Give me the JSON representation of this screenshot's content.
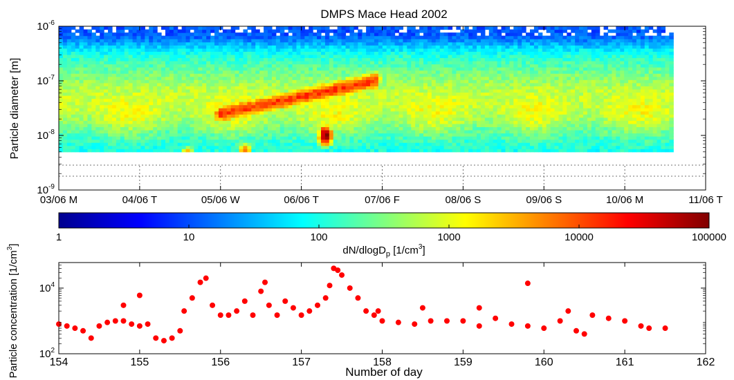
{
  "chart_data": [
    {
      "type": "heatmap",
      "title": "DMPS Mace Head 2002",
      "ylabel": "Particle diameter [m]",
      "xlabel": "",
      "x_ticks": [
        "03/06 M",
        "04/06 T",
        "05/06 W",
        "06/06 T",
        "07/06 F",
        "08/06 S",
        "09/06 S",
        "10/06 M",
        "11/06 T"
      ],
      "y_ticks": [
        {
          "base": "10",
          "exp": "-9",
          "value": 1e-09
        },
        {
          "base": "10",
          "exp": "-8",
          "value": 1e-08
        },
        {
          "base": "10",
          "exp": "-7",
          "value": 1e-07
        },
        {
          "base": "10",
          "exp": "-6",
          "value": 1e-06
        }
      ],
      "y_scale": "log",
      "ylim": [
        1e-09,
        1e-06
      ],
      "data_x_end_fraction": 0.95,
      "colorbar": {
        "label_main": "dN/dlogD",
        "label_sub": "p",
        "label_unit": " [1/cm",
        "label_unit_exp": "3",
        "label_unit_close": "]",
        "ticks": [
          "1",
          "10",
          "100",
          "1000",
          "10000",
          "100000"
        ],
        "scale": "log",
        "range": [
          1,
          100000
        ],
        "colormap": "jet"
      },
      "features": [
        {
          "event": "nucleation",
          "day": 155.6,
          "diameter_m": 4e-09,
          "level": "10000"
        },
        {
          "event": "nucleation",
          "day": 156.3,
          "diameter_m": 5e-09,
          "level": "10000"
        },
        {
          "event": "nucleation",
          "day": 157.3,
          "diameter_m": 1e-08,
          "level": "100000"
        },
        {
          "event": "growth_mode",
          "day_start": 156.0,
          "day_end": 157.9,
          "diameter_m": 5e-08,
          "level": "10000"
        }
      ]
    },
    {
      "type": "scatter",
      "title": "",
      "xlabel": "Number of day",
      "ylabel": "Particle concentration [1/cm",
      "ylabel_exp": "3",
      "ylabel_close": "]",
      "x_ticks": [
        "154",
        "155",
        "156",
        "157",
        "158",
        "159",
        "160",
        "161",
        "162"
      ],
      "xlim": [
        154,
        162
      ],
      "y_ticks": [
        {
          "base": "10",
          "exp": "2",
          "value": 100
        },
        {
          "base": "10",
          "exp": "4",
          "value": 10000
        }
      ],
      "y_scale": "log",
      "ylim": [
        100,
        60000
      ],
      "marker_color": "#ff0000",
      "series": [
        {
          "x": [
            154.0,
            154.1,
            154.2,
            154.3,
            154.4,
            154.5,
            154.6,
            154.7,
            154.8,
            154.9,
            155.0,
            155.1,
            155.2,
            155.3,
            155.4,
            155.5,
            155.55,
            155.65,
            155.75,
            155.82,
            155.9,
            156.0,
            156.1,
            156.2,
            156.3,
            156.4,
            156.5,
            156.55,
            156.6,
            156.7,
            156.8,
            156.9,
            157.0,
            157.1,
            157.2,
            157.3,
            157.35,
            157.4,
            157.45,
            157.5,
            157.6,
            157.7,
            157.8,
            157.9,
            158.0,
            158.2,
            158.4,
            158.6,
            158.8,
            159.0,
            159.2,
            159.4,
            159.6,
            159.8,
            160.0,
            160.2,
            160.4,
            160.5,
            160.6,
            160.8,
            161.0,
            161.2,
            161.3,
            161.5
          ],
          "y": [
            800,
            700,
            600,
            500,
            300,
            700,
            900,
            1000,
            1000,
            800,
            700,
            800,
            300,
            250,
            300,
            500,
            2000,
            5000,
            15000,
            20000,
            3000,
            1500,
            1500,
            2000,
            4000,
            1500,
            8000,
            15000,
            3000,
            1500,
            4000,
            2500,
            1500,
            2000,
            3000,
            5000,
            12000,
            40000,
            35000,
            25000,
            10000,
            5000,
            2000,
            1500,
            1000,
            900,
            800,
            1000,
            1000,
            1000,
            700,
            1200,
            800,
            700,
            600,
            1000,
            500,
            400,
            1500,
            1200,
            1000,
            700,
            600,
            600
          ]
        },
        {
          "x": [
            154.8,
            155.0,
            157.95,
            158.5,
            159.2,
            159.8,
            160.3
          ],
          "y": [
            3000,
            6000,
            2000,
            2500,
            2500,
            14000,
            2000
          ]
        }
      ]
    }
  ]
}
